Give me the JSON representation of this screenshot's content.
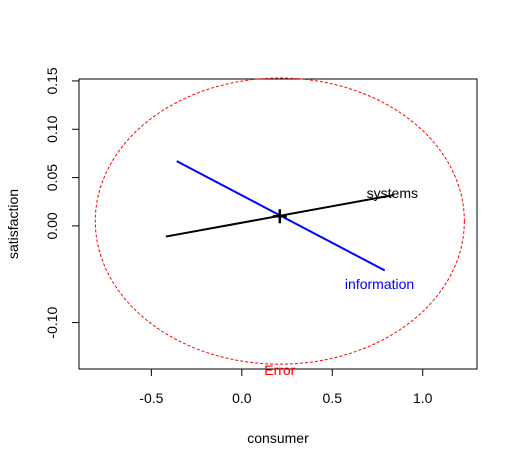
{
  "chart_data": {
    "type": "line",
    "title": "",
    "xlabel": "consumer",
    "ylabel": "satisfaction",
    "xlim": [
      -0.9,
      1.3
    ],
    "ylim": [
      -0.148,
      0.152
    ],
    "x_ticks": [
      -0.5,
      0.0,
      0.5,
      1.0
    ],
    "x_tick_labels": [
      "-0.5",
      "0.0",
      "0.5",
      "1.0"
    ],
    "y_ticks": [
      -0.1,
      0.0,
      0.05,
      0.1,
      0.15
    ],
    "y_tick_labels": [
      "-0.10",
      "0.00",
      "0.05",
      "0.10",
      "0.15"
    ],
    "grid": false,
    "center": {
      "x": 0.21,
      "y": 0.01
    },
    "series": [
      {
        "name": "systems",
        "color": "#000000",
        "x": [
          -0.42,
          0.84
        ],
        "y": [
          -0.011,
          0.032
        ],
        "label_at": {
          "x": 0.69,
          "y": 0.034
        }
      },
      {
        "name": "information",
        "color": "#0000ff",
        "x": [
          -0.36,
          0.79
        ],
        "y": [
          0.067,
          -0.046
        ],
        "label_at": {
          "x": 0.57,
          "y": -0.06
        }
      }
    ],
    "ellipse": {
      "name": "Error",
      "color": "#ff0000",
      "style": "dashed",
      "center": {
        "x": 0.21,
        "y": 0.005
      },
      "rx": 1.02,
      "ry": 0.148,
      "label_at": {
        "x": 0.21,
        "y": -0.148
      }
    }
  }
}
